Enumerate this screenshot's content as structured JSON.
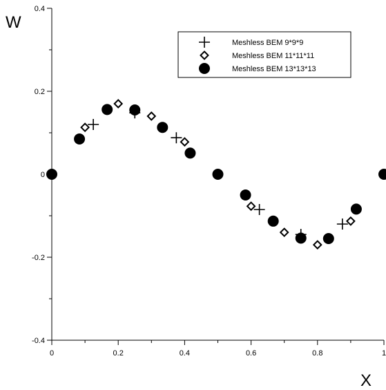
{
  "chart_data": {
    "type": "scatter",
    "xlabel": "X",
    "ylabel": "W",
    "xlim": [
      0,
      1
    ],
    "ylim": [
      -0.4,
      0.4
    ],
    "x_ticks": [
      0,
      0.2,
      0.4,
      0.6,
      0.8,
      1
    ],
    "x_tick_labels": [
      "0",
      "0.2",
      "0.4",
      "0.6",
      "0.8",
      "1"
    ],
    "y_ticks": [
      -0.4,
      -0.2,
      0,
      0.2,
      0.4
    ],
    "y_tick_labels": [
      "-0.4",
      "-0.2",
      "0",
      "0.2",
      "0.4"
    ],
    "grid": false,
    "legend_position": "top-right",
    "series": [
      {
        "name": "Meshless BEM 9*9*9",
        "marker": "plus",
        "color": "#000000",
        "x": [
          0.125,
          0.25,
          0.375,
          0.625,
          0.75,
          0.875
        ],
        "y": [
          0.12,
          0.148,
          0.088,
          -0.085,
          -0.145,
          -0.12
        ]
      },
      {
        "name": "Meshless BEM 11*11*11",
        "marker": "diamond",
        "color": "#000000",
        "x": [
          0.1,
          0.2,
          0.3,
          0.4,
          0.6,
          0.7,
          0.8,
          0.9
        ],
        "y": [
          0.113,
          0.17,
          0.14,
          0.078,
          -0.077,
          -0.14,
          -0.17,
          -0.113
        ]
      },
      {
        "name": "Meshless BEM 13*13*13",
        "marker": "circle",
        "color": "#000000",
        "x": [
          0,
          0.0833,
          0.1667,
          0.25,
          0.3333,
          0.4167,
          0.5,
          0.5833,
          0.6667,
          0.75,
          0.8333,
          0.9167,
          1.0
        ],
        "y": [
          0,
          0.085,
          0.156,
          0.155,
          0.113,
          0.051,
          0,
          -0.05,
          -0.113,
          -0.154,
          -0.155,
          -0.084,
          0
        ]
      }
    ]
  }
}
